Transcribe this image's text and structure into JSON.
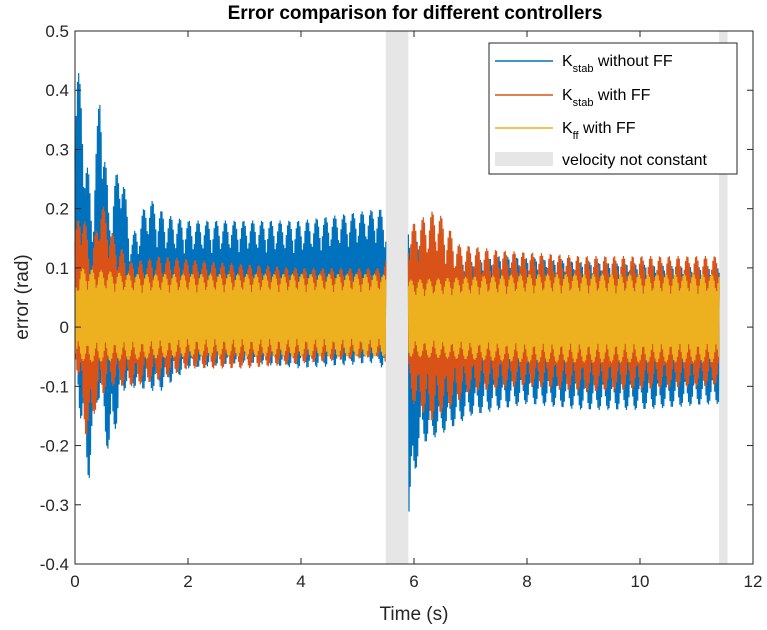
{
  "chart_data": {
    "type": "line",
    "title": "Error comparison for different controllers",
    "xlabel": "Time (s)",
    "ylabel": "error (rad)",
    "xlim": [
      0,
      12
    ],
    "ylim": [
      -0.4,
      0.5
    ],
    "x_ticks": [
      0,
      2,
      4,
      6,
      8,
      10,
      12
    ],
    "x_tick_labels": [
      "0",
      "2",
      "4",
      "6",
      "8",
      "10",
      "12"
    ],
    "y_ticks": [
      -0.4,
      -0.3,
      -0.2,
      -0.1,
      0,
      0.1,
      0.2,
      0.3,
      0.4,
      0.5
    ],
    "y_tick_labels": [
      "-0.4",
      "-0.3",
      "-0.2",
      "-0.1",
      "0",
      "0.1",
      "0.2",
      "0.3",
      "0.4",
      "0.5"
    ],
    "grid": false,
    "legend_position": "top-right",
    "shaded_regions": [
      {
        "x_start": 5.5,
        "x_end": 5.9
      },
      {
        "x_start": 11.4,
        "x_end": 11.55
      }
    ],
    "shaded_label": "velocity not constant",
    "shaded_color": "#e6e6e6",
    "segments": [
      [
        0,
        5.5
      ],
      [
        5.9,
        11.4
      ]
    ],
    "series": [
      {
        "name_main": "K",
        "name_sub": "stab",
        "name_rest": " without FF",
        "color": "#0072BD",
        "upper_envelope": [
          [
            0,
            0.4
          ],
          [
            0.05,
            0.45
          ],
          [
            0.3,
            0.2
          ],
          [
            0.45,
            0.42
          ],
          [
            0.6,
            0.2
          ],
          [
            0.8,
            0.29
          ],
          [
            1.0,
            0.15
          ],
          [
            1.3,
            0.22
          ],
          [
            1.6,
            0.19
          ],
          [
            2.0,
            0.18
          ],
          [
            3.0,
            0.18
          ],
          [
            4.0,
            0.18
          ],
          [
            5.4,
            0.2
          ],
          [
            5.9,
            0.16
          ],
          [
            6.5,
            0.1
          ],
          [
            7.5,
            0.12
          ],
          [
            9.0,
            0.11
          ],
          [
            11.3,
            0.1
          ]
        ],
        "lower_envelope": [
          [
            0,
            -0.05
          ],
          [
            0.15,
            -0.22
          ],
          [
            0.25,
            -0.26
          ],
          [
            0.4,
            -0.12
          ],
          [
            0.6,
            -0.22
          ],
          [
            0.9,
            -0.1
          ],
          [
            1.5,
            -0.11
          ],
          [
            2.0,
            -0.07
          ],
          [
            3.0,
            -0.06
          ],
          [
            4.0,
            -0.07
          ],
          [
            5.4,
            -0.06
          ],
          [
            5.9,
            -0.33
          ],
          [
            6.1,
            -0.2
          ],
          [
            6.5,
            -0.18
          ],
          [
            7.0,
            -0.15
          ],
          [
            8.0,
            -0.13
          ],
          [
            9.0,
            -0.14
          ],
          [
            10.0,
            -0.14
          ],
          [
            11.3,
            -0.13
          ]
        ]
      },
      {
        "name_main": "K",
        "name_sub": "stab",
        "name_rest": " with FF",
        "color": "#D95319",
        "upper_envelope": [
          [
            0,
            0.15
          ],
          [
            0.1,
            0.22
          ],
          [
            0.3,
            0.12
          ],
          [
            0.45,
            0.22
          ],
          [
            0.7,
            0.15
          ],
          [
            1.0,
            0.11
          ],
          [
            1.5,
            0.12
          ],
          [
            2.5,
            0.11
          ],
          [
            4.0,
            0.1
          ],
          [
            5.4,
            0.1
          ],
          [
            5.9,
            0.17
          ],
          [
            6.4,
            0.2
          ],
          [
            6.8,
            0.14
          ],
          [
            7.5,
            0.13
          ],
          [
            9.0,
            0.12
          ],
          [
            11.3,
            0.12
          ]
        ],
        "lower_envelope": [
          [
            0,
            -0.05
          ],
          [
            0.2,
            -0.19
          ],
          [
            0.4,
            -0.13
          ],
          [
            0.6,
            -0.1
          ],
          [
            1.0,
            -0.1
          ],
          [
            1.5,
            -0.09
          ],
          [
            2.0,
            -0.07
          ],
          [
            3.0,
            -0.07
          ],
          [
            5.4,
            -0.05
          ],
          [
            5.9,
            -0.12
          ],
          [
            6.3,
            -0.16
          ],
          [
            7.0,
            -0.11
          ],
          [
            8.0,
            -0.1
          ],
          [
            9.0,
            -0.11
          ],
          [
            11.3,
            -0.1
          ]
        ]
      },
      {
        "name_main": "K",
        "name_sub": "ff",
        "name_rest": " with FF",
        "color": "#EDB120",
        "upper_envelope": [
          [
            0,
            0.07
          ],
          [
            0.1,
            0.1
          ],
          [
            1.0,
            0.09
          ],
          [
            3.0,
            0.09
          ],
          [
            5.4,
            0.09
          ],
          [
            5.9,
            0.08
          ],
          [
            8.0,
            0.09
          ],
          [
            11.3,
            0.09
          ]
        ],
        "lower_envelope": [
          [
            0,
            -0.05
          ],
          [
            0.2,
            -0.06
          ],
          [
            2.0,
            -0.05
          ],
          [
            4.0,
            -0.05
          ],
          [
            5.4,
            -0.05
          ],
          [
            5.9,
            -0.05
          ],
          [
            8.0,
            -0.06
          ],
          [
            11.3,
            -0.06
          ]
        ]
      }
    ]
  }
}
